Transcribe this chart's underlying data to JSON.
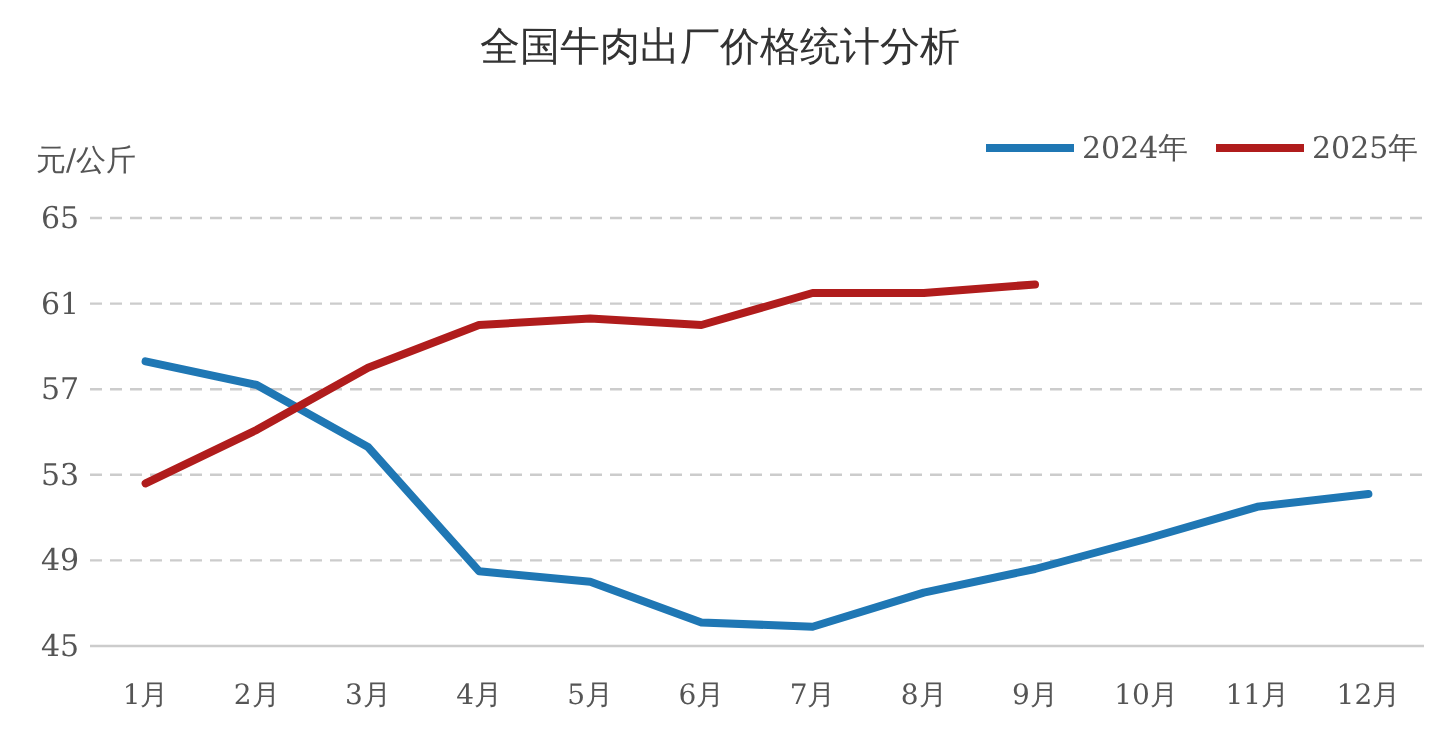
{
  "chart_data": {
    "type": "line",
    "title": "全国牛肉出厂价格统计分析",
    "ylabel": "元/公斤",
    "categories": [
      "1月",
      "2月",
      "3月",
      "4月",
      "5月",
      "6月",
      "7月",
      "8月",
      "9月",
      "10月",
      "11月",
      "12月"
    ],
    "series": [
      {
        "name": "2024年",
        "color": "#1f77b4",
        "values": [
          58.3,
          57.2,
          54.3,
          48.5,
          48.0,
          46.1,
          45.9,
          47.5,
          48.6,
          50.0,
          51.5,
          52.1
        ]
      },
      {
        "name": "2025年",
        "color": "#b01c1c",
        "values": [
          52.6,
          55.1,
          58.0,
          60.0,
          60.3,
          60.0,
          61.5,
          61.5,
          61.9,
          null,
          null,
          null
        ]
      }
    ],
    "ylim": [
      45,
      65
    ],
    "yticks": [
      45,
      49,
      53,
      57,
      61,
      65
    ],
    "grid": "y",
    "legend": "top right",
    "marker": "none",
    "line_style": "solid"
  }
}
